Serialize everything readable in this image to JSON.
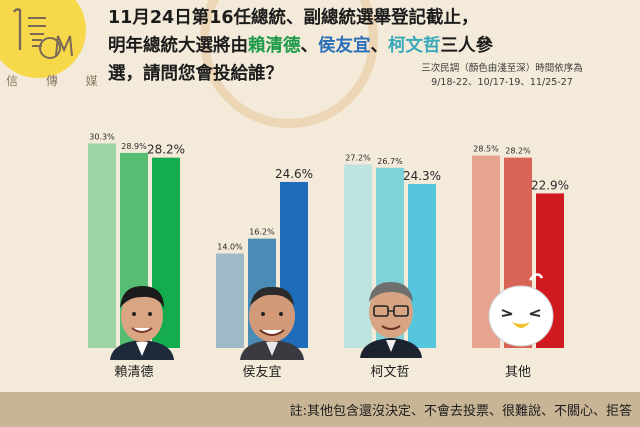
{
  "header": {
    "logo_text": "信 傳 媒",
    "headline": {
      "line1": "11月24日第16任總統、副總統選舉登記截止，",
      "line2_prefix": "明年總統大選將由",
      "candidate1": "賴清德",
      "sep1": "、",
      "candidate2": "侯友宜",
      "sep2": "、",
      "candidate3": "柯文哲",
      "line2_suffix": "三人參",
      "line3": "選，請問您會投給誰？"
    },
    "note_line1": "三次民調（顏色由淺至深）時間依序為",
    "note_line2": "9/18-22、10/17-19、11/25-27"
  },
  "footer": {
    "text": "註:其他包含還沒決定、不會去投票、很難說、不關心、拒答"
  },
  "colors": {
    "background": "#f3ead9",
    "footer": "#c8b595",
    "lai": [
      "#9dd4a6",
      "#55be72",
      "#14ac4e"
    ],
    "hou": [
      "#9fb9c6",
      "#4b8cb6",
      "#1f6cba"
    ],
    "ko": [
      "#bfe3df",
      "#7fd2d8",
      "#55c6dd"
    ],
    "other": [
      "#e6a390",
      "#d86456",
      "#d11a1f"
    ]
  },
  "chart_data": {
    "type": "bar",
    "categories": [
      "賴清德",
      "侯友宜",
      "柯文哲",
      "其他"
    ],
    "series": [
      {
        "values": [
          30.3,
          14.0,
          27.2,
          28.5
        ]
      },
      {
        "values": [
          28.9,
          16.2,
          26.7,
          28.2
        ]
      },
      {
        "values": [
          28.2,
          24.6,
          24.3,
          22.9
        ]
      }
    ],
    "data_labels": [
      [
        "30.3%",
        "28.9%",
        "28.2%"
      ],
      [
        "14.0%",
        "16.2%",
        "24.6%"
      ],
      [
        "27.2%",
        "26.7%",
        "24.3%"
      ],
      [
        "28.5%",
        "28.2%",
        "22.9%"
      ]
    ],
    "unit": "%",
    "ylim": [
      0,
      32
    ],
    "grid": false,
    "legend": "none"
  }
}
